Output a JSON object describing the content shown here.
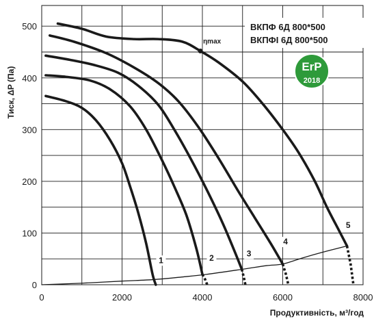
{
  "chart_data": {
    "type": "line",
    "xlabel": "Продуктивність, м³/год",
    "ylabel": "Тиск, ΔP (Па)",
    "xlim": [
      0,
      8000
    ],
    "ylim": [
      0,
      540
    ],
    "xticks": [
      "0",
      "2000",
      "4000",
      "6000",
      "8000"
    ],
    "yticks": [
      "0",
      "100",
      "200",
      "300",
      "400",
      "500"
    ],
    "grid": true,
    "models": [
      "ВКПФ  6Д 800*500",
      "ВКПФІ  6Д 800*500"
    ],
    "eta_label": "ηmax",
    "eta_point": {
      "x": 3950,
      "y": 452
    },
    "badge": {
      "text": "ErP",
      "year": "2018",
      "color": "#2e9a3a"
    },
    "series": [
      {
        "label": "1",
        "solid": [
          [
            100,
            365
          ],
          [
            600,
            355
          ],
          [
            1000,
            342
          ],
          [
            1350,
            318
          ],
          [
            1700,
            280
          ],
          [
            2000,
            235
          ],
          [
            2200,
            190
          ],
          [
            2400,
            140
          ],
          [
            2600,
            80
          ],
          [
            2760,
            20
          ],
          [
            2840,
            0
          ]
        ],
        "dotted": []
      },
      {
        "label": "2",
        "solid": [
          [
            100,
            405
          ],
          [
            600,
            402
          ],
          [
            1200,
            395
          ],
          [
            1700,
            378
          ],
          [
            2200,
            345
          ],
          [
            2600,
            300
          ],
          [
            3000,
            240
          ],
          [
            3300,
            190
          ],
          [
            3600,
            135
          ],
          [
            3850,
            70
          ],
          [
            4000,
            20
          ]
        ],
        "dotted": [
          [
            4000,
            20
          ],
          [
            4070,
            10
          ],
          [
            4120,
            0
          ]
        ]
      },
      {
        "label": "3",
        "solid": [
          [
            100,
            443
          ],
          [
            700,
            435
          ],
          [
            1300,
            425
          ],
          [
            1900,
            410
          ],
          [
            2400,
            385
          ],
          [
            2900,
            348
          ],
          [
            3300,
            300
          ],
          [
            3700,
            245
          ],
          [
            4100,
            185
          ],
          [
            4500,
            120
          ],
          [
            4800,
            65
          ],
          [
            4980,
            30
          ]
        ],
        "dotted": [
          [
            4980,
            30
          ],
          [
            5030,
            15
          ],
          [
            5070,
            0
          ]
        ]
      },
      {
        "label": "4",
        "solid": [
          [
            200,
            482
          ],
          [
            800,
            470
          ],
          [
            1600,
            448
          ],
          [
            2300,
            420
          ],
          [
            2900,
            390
          ],
          [
            3400,
            355
          ],
          [
            3900,
            305
          ],
          [
            4400,
            245
          ],
          [
            4900,
            180
          ],
          [
            5300,
            130
          ],
          [
            5700,
            80
          ],
          [
            6000,
            40
          ]
        ],
        "dotted": [
          [
            6000,
            40
          ],
          [
            6080,
            20
          ],
          [
            6140,
            0
          ]
        ]
      },
      {
        "label": "5",
        "solid": [
          [
            400,
            505
          ],
          [
            1000,
            495
          ],
          [
            1600,
            480
          ],
          [
            2300,
            475
          ],
          [
            2900,
            475
          ],
          [
            3500,
            470
          ],
          [
            3950,
            452
          ],
          [
            4400,
            430
          ],
          [
            5000,
            393
          ],
          [
            5500,
            350
          ],
          [
            6000,
            300
          ],
          [
            6400,
            255
          ],
          [
            6800,
            200
          ],
          [
            7100,
            150
          ],
          [
            7400,
            105
          ],
          [
            7600,
            75
          ]
        ],
        "dotted": [
          [
            7600,
            75
          ],
          [
            7690,
            40
          ],
          [
            7760,
            0
          ]
        ]
      },
      {
        "label": "system",
        "solid": [
          [
            0,
            0
          ],
          [
            1000,
            3
          ],
          [
            2000,
            7
          ],
          [
            2800,
            10
          ],
          [
            3500,
            15
          ],
          [
            4100,
            20
          ],
          [
            5000,
            30
          ],
          [
            5600,
            37
          ],
          [
            6000,
            40
          ],
          [
            6500,
            52
          ],
          [
            7000,
            63
          ],
          [
            7600,
            75
          ]
        ],
        "dotted": []
      }
    ],
    "curve_labels": [
      {
        "text": "1",
        "x": 2970,
        "y": 42
      },
      {
        "text": "2",
        "x": 4230,
        "y": 46
      },
      {
        "text": "3",
        "x": 5160,
        "y": 55
      },
      {
        "text": "4",
        "x": 6070,
        "y": 78
      },
      {
        "text": "5",
        "x": 7630,
        "y": 110
      }
    ]
  }
}
